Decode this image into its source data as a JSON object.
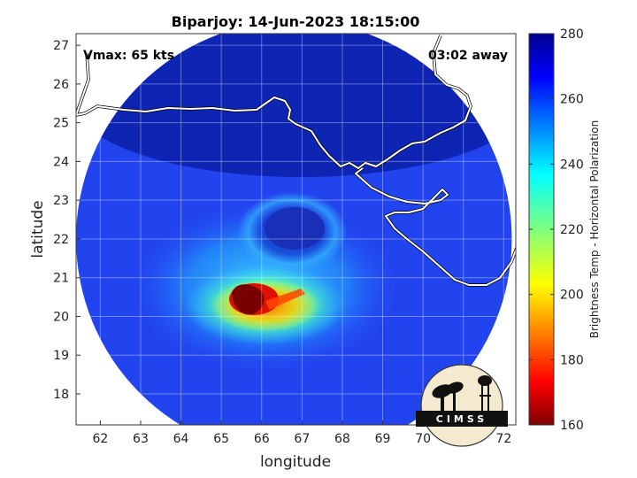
{
  "chart_data": {
    "type": "heatmap",
    "title": "Biparjoy: 14-Jun-2023 18:15:00",
    "xlabel": "longitude",
    "ylabel": "latitude",
    "xlim": [
      61.4,
      72.3
    ],
    "ylim": [
      17.2,
      27.3
    ],
    "xticks": [
      62,
      63,
      64,
      65,
      66,
      67,
      68,
      69,
      70,
      71,
      72
    ],
    "yticks": [
      18,
      19,
      20,
      21,
      22,
      23,
      24,
      25,
      26,
      27
    ],
    "grid": true,
    "annotations": {
      "vmax": "Vmax: 65 kts",
      "away": "03:02 away"
    },
    "colorbar": {
      "label": "Brightness Temp - Horizontal Polarization",
      "range": [
        160,
        280
      ],
      "ticks": [
        160,
        180,
        200,
        220,
        240,
        260,
        280
      ],
      "colormap": "jet"
    },
    "swath": {
      "center_lon": 66.8,
      "center_lat": 22.0,
      "radius_deg": 5.4
    },
    "features": {
      "eye": {
        "lon": 66.8,
        "lat": 22.2
      },
      "coldest_core": {
        "lon": 65.3,
        "lat": 20.3,
        "brightness_temp": 165
      }
    },
    "logo": "CIMSS"
  }
}
